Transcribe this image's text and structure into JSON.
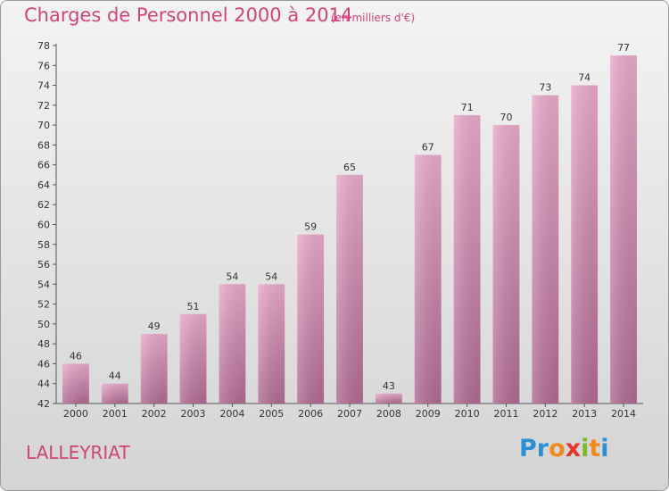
{
  "header": {
    "title": "Charges de Personnel 2000 à 2014",
    "subtitle": "(en milliers d'€)"
  },
  "footer": {
    "commune": "LALLEYRIAT",
    "logo_letters": [
      "P",
      "r",
      "o",
      "x",
      "i",
      "t",
      "i"
    ]
  },
  "colors": {
    "accent": "#d0447a",
    "bar_top": "#e8a9cb",
    "bar_bottom": "#b06a93",
    "logo": [
      "#2b8fd6",
      "#2b8fd6",
      "#f08a1c",
      "#e8352a",
      "#7ab929",
      "#f08a1c",
      "#2b8fd6"
    ]
  },
  "chart_data": {
    "type": "bar",
    "title": "Charges de Personnel 2000 à 2014",
    "subtitle": "(en milliers d'€)",
    "categories": [
      "2000",
      "2001",
      "2002",
      "2003",
      "2004",
      "2005",
      "2006",
      "2007",
      "2008",
      "2009",
      "2010",
      "2011",
      "2012",
      "2013",
      "2014"
    ],
    "values": [
      46,
      44,
      49,
      51,
      54,
      54,
      59,
      65,
      43,
      67,
      71,
      70,
      73,
      74,
      77
    ],
    "ylim": [
      42,
      78
    ],
    "yticks": [
      42,
      44,
      46,
      48,
      50,
      52,
      54,
      56,
      58,
      60,
      62,
      64,
      66,
      68,
      70,
      72,
      74,
      76,
      78
    ],
    "grid": false,
    "data_labels": true
  }
}
